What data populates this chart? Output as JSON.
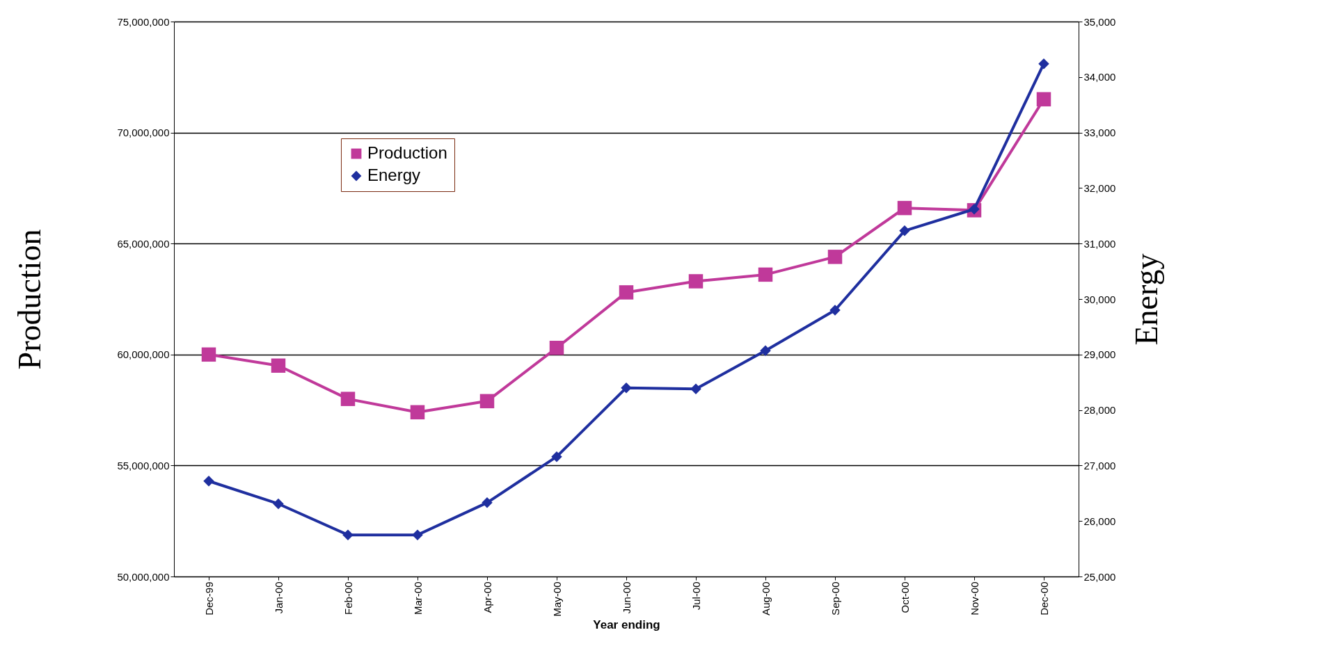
{
  "chart_data": {
    "type": "line",
    "xlabel": "Year ending",
    "ylabel": "Production",
    "y2label": "Energy",
    "categories": [
      "Dec-99",
      "Jan-00",
      "Feb-00",
      "Mar-00",
      "Apr-00",
      "May-00",
      "Jun-00",
      "Jul-00",
      "Aug-00",
      "Sep-00",
      "Oct-00",
      "Nov-00",
      "Dec-00"
    ],
    "series": [
      {
        "name": "Production",
        "color": "#c0399a",
        "marker": "square",
        "values": [
          60000000,
          59500000,
          58000000,
          57400000,
          57900000,
          60300000,
          62800000,
          63300000,
          63600000,
          64400000,
          66600000,
          66500000,
          71500000
        ]
      },
      {
        "name": "Energy",
        "color": "#1f2f9f",
        "marker": "diamond",
        "axis": "y2",
        "values": [
          26720,
          26310,
          25750,
          25750,
          26330,
          27160,
          28400,
          28380,
          29070,
          29800,
          31230,
          31620,
          34240
        ]
      }
    ],
    "ylim": [
      50000000,
      75000000
    ],
    "yticks": [
      {
        "value": 50000000,
        "label": "50,000,000"
      },
      {
        "value": 55000000,
        "label": "55,000,000"
      },
      {
        "value": 60000000,
        "label": "60,000,000"
      },
      {
        "value": 65000000,
        "label": "65,000,000"
      },
      {
        "value": 70000000,
        "label": "70,000,000"
      },
      {
        "value": 75000000,
        "label": "75,000,000"
      }
    ],
    "y2lim": [
      25000,
      35000
    ],
    "y2ticks": [
      {
        "value": 25000,
        "label": "25,000"
      },
      {
        "value": 26000,
        "label": "26,000"
      },
      {
        "value": 27000,
        "label": "27,000"
      },
      {
        "value": 28000,
        "label": "28,000"
      },
      {
        "value": 29000,
        "label": "29,000"
      },
      {
        "value": 30000,
        "label": "30,000"
      },
      {
        "value": 31000,
        "label": "31,000"
      },
      {
        "value": 32000,
        "label": "32,000"
      },
      {
        "value": 33000,
        "label": "33,000"
      },
      {
        "value": 34000,
        "label": "34,000"
      },
      {
        "value": 35000,
        "label": "35,000"
      }
    ],
    "grid": "y",
    "legend": "top left"
  }
}
